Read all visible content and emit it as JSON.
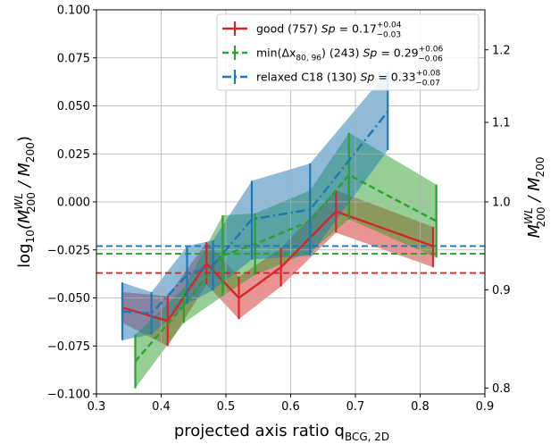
{
  "chart_data": {
    "type": "line",
    "xlabel": "projected axis ratio q",
    "xlabel_sub": "BCG, 2D",
    "ylabel_parts": [
      "log",
      "10",
      "(M",
      "WL",
      "200",
      " / M",
      "200",
      ")"
    ],
    "ylabel_right_parts": [
      "M",
      "WL",
      "200",
      " / M",
      "200"
    ],
    "xlim": [
      0.3,
      0.9
    ],
    "ylim": [
      -0.1,
      0.1
    ],
    "xticks": [
      0.3,
      0.4,
      0.5,
      0.6,
      0.7,
      0.8,
      0.9
    ],
    "xtick_labels": [
      "0.3",
      "0.4",
      "0.5",
      "0.6",
      "0.7",
      "0.8",
      "0.9"
    ],
    "yticks": [
      -0.1,
      -0.075,
      -0.05,
      -0.025,
      0.0,
      0.025,
      0.05,
      0.075,
      0.1
    ],
    "ytick_labels": [
      "−0.100",
      "−0.075",
      "−0.050",
      "−0.025",
      "0.000",
      "0.025",
      "0.050",
      "0.075",
      "0.100"
    ],
    "right_axis_ticks": [
      0.8,
      0.9,
      1.0,
      1.1,
      1.2
    ],
    "right_axis_labels": [
      "0.8",
      "0.9",
      "1.0",
      "1.1",
      "1.2"
    ],
    "grid": true,
    "legend_position": "top-right",
    "series": [
      {
        "label_main": "good (757) ",
        "label_sp": "Sp",
        "label_value": " = 0.17",
        "label_sup": "+0.04",
        "label_sub": "−0.03",
        "color": "#d62728",
        "linestyle": "solid",
        "x": [
          0.34,
          0.41,
          0.47,
          0.52,
          0.585,
          0.67,
          0.82
        ],
        "y": [
          -0.055,
          -0.062,
          -0.032,
          -0.05,
          -0.034,
          -0.005,
          -0.023
        ],
        "err_low": [
          -0.063,
          -0.075,
          -0.043,
          -0.061,
          -0.044,
          -0.016,
          -0.034
        ],
        "err_high": [
          -0.047,
          -0.049,
          -0.021,
          -0.039,
          -0.024,
          0.006,
          -0.013
        ],
        "reference": -0.037
      },
      {
        "label_main": "min(Δx",
        "label_main_sub": "80, 96",
        "label_main_tail": ") (243) ",
        "label_sp": "Sp",
        "label_value": " = 0.29",
        "label_sup": "+0.06",
        "label_sub": "−0.06",
        "color": "#2ca02c",
        "linestyle": "dashed",
        "x": [
          0.36,
          0.435,
          0.495,
          0.545,
          0.63,
          0.69,
          0.825
        ],
        "y": [
          -0.083,
          -0.054,
          -0.028,
          -0.022,
          -0.01,
          0.014,
          -0.01
        ],
        "err_low": [
          -0.097,
          -0.063,
          -0.049,
          -0.038,
          -0.026,
          -0.009,
          -0.029
        ],
        "err_high": [
          -0.069,
          -0.045,
          -0.007,
          -0.006,
          0.006,
          0.036,
          0.009
        ],
        "reference": -0.027
      },
      {
        "label_main": "relaxed C18 (130) ",
        "label_sp": "Sp",
        "label_value": " = 0.33",
        "label_sup": "+0.08",
        "label_sub": "−0.07",
        "color": "#1f77b4",
        "linestyle": "dashdot",
        "x": [
          0.34,
          0.385,
          0.44,
          0.48,
          0.54,
          0.63,
          0.75
        ],
        "y": [
          -0.057,
          -0.058,
          -0.038,
          -0.033,
          -0.009,
          -0.004,
          0.047
        ],
        "err_low": [
          -0.072,
          -0.069,
          -0.053,
          -0.046,
          -0.03,
          -0.028,
          0.027
        ],
        "err_high": [
          -0.042,
          -0.047,
          -0.023,
          -0.02,
          0.011,
          0.02,
          0.068
        ],
        "reference": -0.023
      }
    ]
  }
}
